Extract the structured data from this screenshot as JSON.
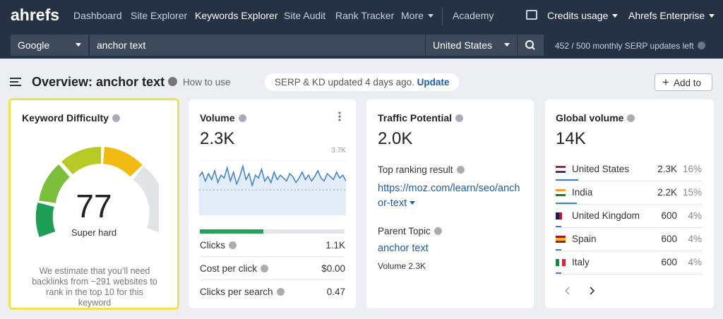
{
  "nav": {
    "logo": "ahrefs",
    "items": [
      "Dashboard",
      "Site Explorer",
      "Keywords Explorer",
      "Site Audit",
      "Rank Tracker",
      "More",
      "Academy"
    ],
    "credits": "Credits usage",
    "account": "Ahrefs Enterprise"
  },
  "search": {
    "engine": "Google",
    "query": "anchor text",
    "country": "United States",
    "updates": "452 / 500 monthly SERP updates left"
  },
  "overview": {
    "title": "Overview: anchor text",
    "how_to": "How to use",
    "status": "SERP & KD updated 4 days ago.",
    "update": "Update",
    "add_to": "Add to"
  },
  "kd": {
    "title": "Keyword Difficulty",
    "score": "77",
    "label": "Super hard",
    "note": "We estimate that you’ll need backlinks from ~291 websites to rank in the top 10 for this keyword"
  },
  "volume": {
    "title": "Volume",
    "value": "2.3K",
    "trend_ylim": [
      0,
      3.7
    ],
    "trend_max": {
      "value": 3.7,
      "label": "3.7K"
    },
    "trend": [
      2.6,
      2.9,
      2.3,
      2.8,
      2.4,
      3.0,
      2.2,
      2.7,
      2.5,
      3.2,
      2.3,
      2.9,
      2.1,
      2.6,
      3.3,
      2.4,
      2.8,
      2.0,
      2.7,
      2.5,
      3.1,
      2.3,
      2.6,
      2.2,
      2.9,
      2.4,
      2.7,
      2.5,
      2.3,
      2.8,
      2.6,
      2.2,
      2.5,
      2.9,
      2.4,
      2.7,
      2.3,
      2.6,
      3.0,
      2.5,
      2.3,
      2.8,
      2.6,
      2.4,
      2.9,
      2.5,
      2.7,
      2.3
    ],
    "metrics": [
      {
        "label": "Clicks",
        "value": "1.1K"
      },
      {
        "label": "Cost per click",
        "value": "$0.00"
      },
      {
        "label": "Clicks per search",
        "value": "0.47"
      }
    ]
  },
  "traffic": {
    "title": "Traffic Potential",
    "value": "2.0K",
    "top_label": "Top ranking result",
    "top_url": "https://moz.com/learn/seo/anchor-text",
    "parent_label": "Parent Topic",
    "parent": "anchor text",
    "parent_volume": "Volume 2.3K"
  },
  "global": {
    "title": "Global volume",
    "value": "14K",
    "countries": [
      {
        "name": "United States",
        "volume": "2.3K",
        "share": 16,
        "share_label": "16%"
      },
      {
        "name": "India",
        "volume": "2.2K",
        "share": 15,
        "share_label": "15%"
      },
      {
        "name": "United Kingdom",
        "volume": "600",
        "share": 4,
        "share_label": "4%"
      },
      {
        "name": "Spain",
        "volume": "600",
        "share": 4,
        "share_label": "4%"
      },
      {
        "name": "Italy",
        "volume": "600",
        "share": 4,
        "share_label": "4%"
      }
    ]
  }
}
